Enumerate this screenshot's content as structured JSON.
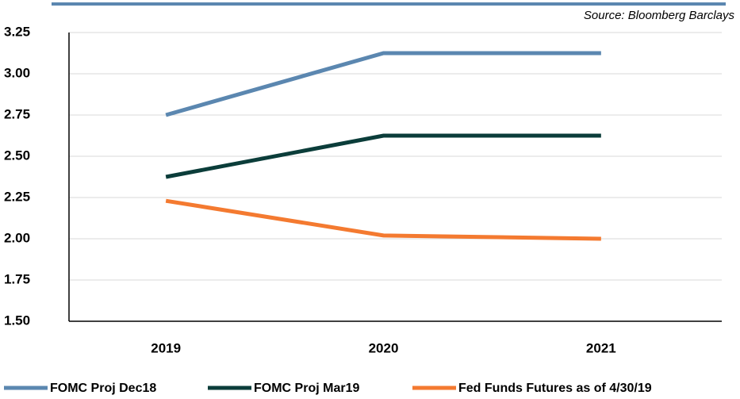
{
  "chart_data": {
    "type": "line",
    "source": "Source: Bloomberg Barclays",
    "categories": [
      "2019",
      "2020",
      "2021"
    ],
    "series": [
      {
        "name": "FOMC Proj Dec18",
        "color": "#5b87b0",
        "values": [
          2.75,
          3.125,
          3.125
        ]
      },
      {
        "name": "FOMC Proj Mar19",
        "color": "#0b3d3a",
        "values": [
          2.375,
          2.625,
          2.625
        ]
      },
      {
        "name": "Fed Funds Futures as of 4/30/19",
        "color": "#f47a30",
        "values": [
          2.23,
          2.02,
          2.0
        ]
      }
    ],
    "ylim": [
      1.5,
      3.25
    ],
    "yticks": [
      {
        "value": 1.5,
        "label": "1.50"
      },
      {
        "value": 1.75,
        "label": "1.75"
      },
      {
        "value": 2.0,
        "label": "2.00"
      },
      {
        "value": 2.25,
        "label": "2.25"
      },
      {
        "value": 2.5,
        "label": "2.50"
      },
      {
        "value": 2.75,
        "label": "2.75"
      },
      {
        "value": 3.0,
        "label": "3.00"
      },
      {
        "value": 3.25,
        "label": "3.25"
      }
    ],
    "grid": true,
    "legend": "bottom"
  }
}
